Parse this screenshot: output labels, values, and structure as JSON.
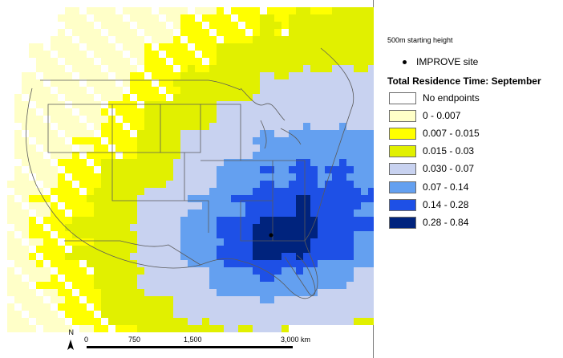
{
  "legend": {
    "subtitle": "500m starting height",
    "site_label": "IMPROVE site",
    "title": "Total Residence Time: September",
    "classes": [
      {
        "label": "No endpoints",
        "color": "#ffffff"
      },
      {
        "label": "0 - 0.007",
        "color": "#ffffc8"
      },
      {
        "label": "0.007 - 0.015",
        "color": "#ffff00"
      },
      {
        "label": "0.015 - 0.03",
        "color": "#e1f000"
      },
      {
        "label": "0.030 - 0.07",
        "color": "#c8d2f0"
      },
      {
        "label": "0.07 - 0.14",
        "color": "#64a0f0"
      },
      {
        "label": "0.14 - 0.28",
        "color": "#1e50e6"
      },
      {
        "label": "0.28 - 0.84",
        "color": "#00237d"
      }
    ]
  },
  "scale_bar": {
    "north_label": "N",
    "ticks": [
      "0",
      "750",
      "1,500",
      "3,000 km"
    ]
  },
  "site": {
    "name": "IMPROVE site"
  },
  "colors": {
    "boundary": "#5a5a5a",
    "frame": "#7a7a7a"
  }
}
